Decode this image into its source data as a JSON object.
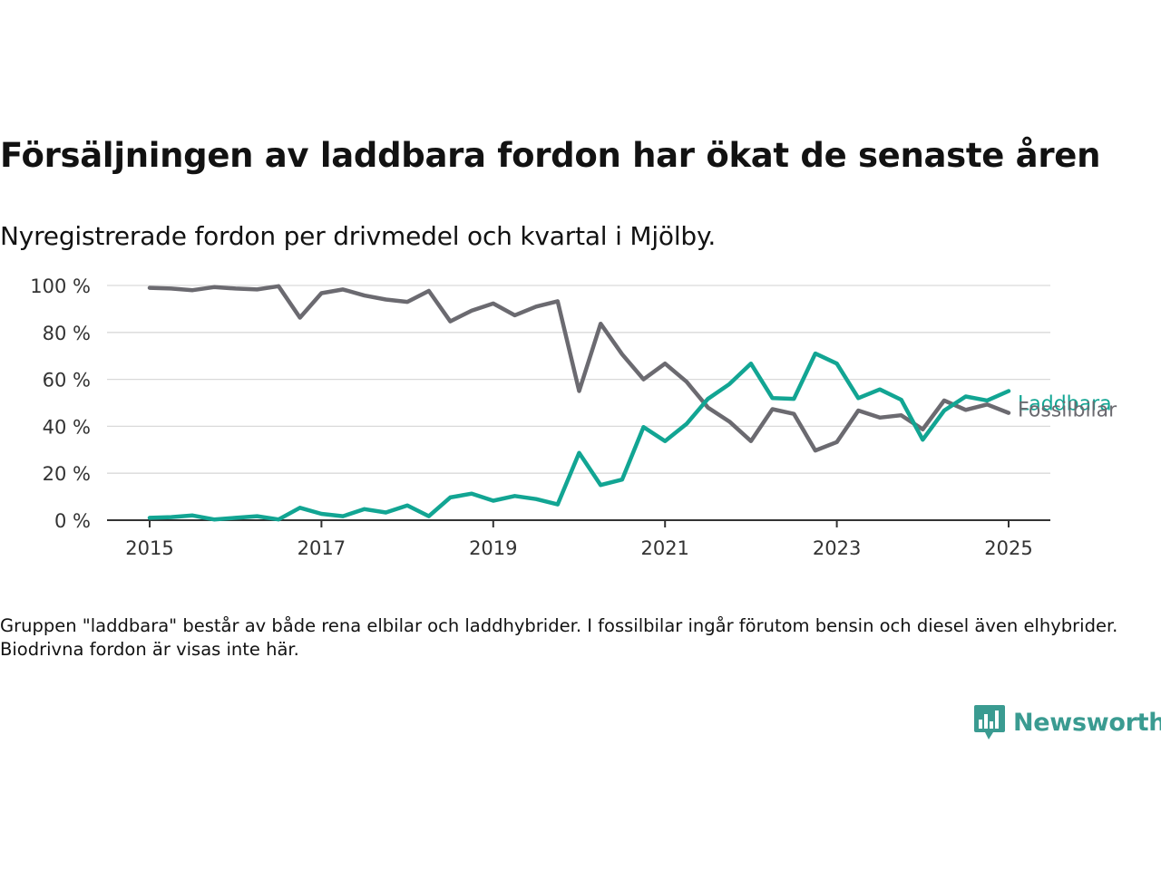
{
  "title": "Försäljningen av laddbara fordon har ökat de senaste åren",
  "subtitle": "Nyregistrerade fordon per drivmedel och kvartal i Mjölby.",
  "footnote": "Gruppen \"laddbara\" består av både rena elbilar och laddhybrider. I fossilbilar ingår förutom bensin och diesel även elhybrider. Biodrivna fordon är visas inte här.",
  "logo": {
    "text": "Newsworthy",
    "icon": "bar-chart-speech-bubble-icon",
    "color": "#3a9b91"
  },
  "chart_data": {
    "type": "line",
    "x_unit": "quarter start",
    "x": [
      "2015-01",
      "2015-04",
      "2015-07",
      "2015-10",
      "2016-01",
      "2016-04",
      "2016-07",
      "2016-10",
      "2017-01",
      "2017-04",
      "2017-07",
      "2017-10",
      "2018-01",
      "2018-04",
      "2018-07",
      "2018-10",
      "2019-01",
      "2019-04",
      "2019-07",
      "2019-10",
      "2020-01",
      "2020-04",
      "2020-07",
      "2020-10",
      "2021-01",
      "2021-04",
      "2021-07",
      "2021-10",
      "2022-01",
      "2022-04",
      "2022-07",
      "2022-10",
      "2023-01",
      "2023-04",
      "2023-07",
      "2023-10",
      "2024-01",
      "2024-04",
      "2024-07",
      "2024-10",
      "2025-01"
    ],
    "series": [
      {
        "name": "Fossilbilar",
        "color": "#6b6a70",
        "values": [
          99,
          98.7,
          98,
          99.3,
          98.7,
          98.3,
          99.7,
          86.3,
          96.7,
          98.3,
          95.7,
          94,
          93,
          97.7,
          84.7,
          89.3,
          92.3,
          87.3,
          91,
          93.3,
          55,
          83.7,
          70.7,
          60,
          66.7,
          59,
          48,
          42,
          33.7,
          47.3,
          45.3,
          29.7,
          33.3,
          46.7,
          43.7,
          44.7,
          38.7,
          51,
          47,
          49.3,
          45.7
        ]
      },
      {
        "name": "Laddbara",
        "color": "#12a593",
        "values": [
          1,
          1.3,
          2,
          0.3,
          1,
          1.7,
          0.3,
          5.3,
          2.7,
          1.7,
          4.7,
          3.3,
          6.3,
          1.7,
          9.7,
          11.3,
          8.3,
          10.3,
          9,
          6.7,
          28.7,
          15,
          17.3,
          39.7,
          33.7,
          41,
          51.7,
          58,
          66.7,
          52,
          51.7,
          71,
          66.7,
          52,
          55.7,
          51.3,
          34.3,
          46.7,
          52.7,
          51,
          55
        ]
      }
    ],
    "x_ticks": [
      "2015",
      "2017",
      "2019",
      "2021",
      "2023",
      "2025"
    ],
    "y_ticks": [
      "0 %",
      "20 %",
      "40 %",
      "60 %",
      "80 %",
      "100 %"
    ],
    "ylim": [
      0,
      100
    ],
    "grid": true,
    "legend": "direct labels at line ends"
  }
}
